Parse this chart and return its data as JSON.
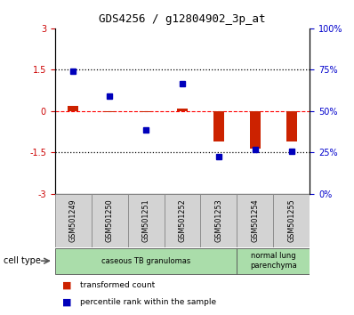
{
  "title": "GDS4256 / g12804902_3p_at",
  "samples": [
    "GSM501249",
    "GSM501250",
    "GSM501251",
    "GSM501252",
    "GSM501253",
    "GSM501254",
    "GSM501255"
  ],
  "red_values": [
    0.2,
    -0.05,
    -0.05,
    0.1,
    -1.1,
    -1.35,
    -1.1
  ],
  "blue_values": [
    1.45,
    0.55,
    -0.7,
    1.0,
    -1.65,
    -1.4,
    -1.45
  ],
  "ylim": [
    -3,
    3
  ],
  "yticks_left": [
    -3,
    -1.5,
    0,
    1.5,
    3
  ],
  "yticks_right": [
    0,
    25,
    50,
    75,
    100
  ],
  "ytick_labels_left": [
    "-3",
    "-1.5",
    "0",
    "1.5",
    "3"
  ],
  "ytick_labels_right": [
    "0%",
    "25%",
    "50%",
    "75%",
    "100%"
  ],
  "cell_type_groups": [
    {
      "label": "caseous TB granulomas",
      "start": 0,
      "end": 5,
      "color": "#aaddaa"
    },
    {
      "label": "normal lung\nparenchyma",
      "start": 5,
      "end": 7,
      "color": "#aaddaa"
    }
  ],
  "cell_type_label": "cell type",
  "legend_items": [
    {
      "color": "#CC2200",
      "label": "transformed count"
    },
    {
      "color": "#0000BB",
      "label": "percentile rank within the sample"
    }
  ],
  "bar_color_red": "#CC2200",
  "bar_color_blue": "#0000BB",
  "bg_color": "#ffffff",
  "tick_label_color_left": "#CC0000",
  "tick_label_color_right": "#0000CC"
}
